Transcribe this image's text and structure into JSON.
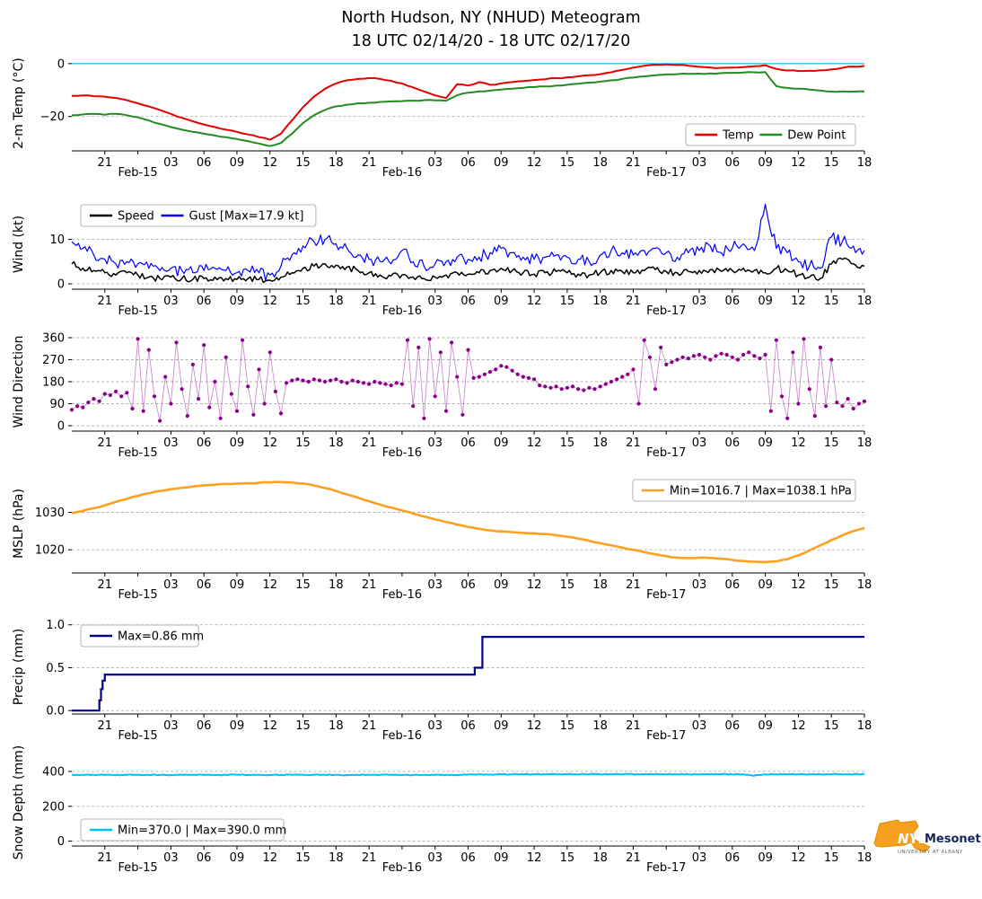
{
  "title": {
    "line1": "North Hudson, NY (NHUD) Meteogram",
    "line2": "18 UTC 02/14/20 - 18 UTC 02/17/20"
  },
  "logo": {
    "nys": "NYS",
    "mesonet": "Mesonet",
    "subtitle": "UNIVERSITY AT ALBANY"
  },
  "time_axis": {
    "start": "18 UTC 02/14/20",
    "end": "18 UTC 02/17/20",
    "hours": 72,
    "ticks": [
      {
        "t": 3,
        "label": "21"
      },
      {
        "t": 6,
        "label": "Feb-15",
        "date": true
      },
      {
        "t": 9,
        "label": "03"
      },
      {
        "t": 12,
        "label": "06"
      },
      {
        "t": 15,
        "label": "09"
      },
      {
        "t": 18,
        "label": "12"
      },
      {
        "t": 21,
        "label": "15"
      },
      {
        "t": 24,
        "label": "18"
      },
      {
        "t": 27,
        "label": "21"
      },
      {
        "t": 30,
        "label": "Feb-16",
        "date": true
      },
      {
        "t": 33,
        "label": "03"
      },
      {
        "t": 36,
        "label": "06"
      },
      {
        "t": 39,
        "label": "09"
      },
      {
        "t": 42,
        "label": "12"
      },
      {
        "t": 45,
        "label": "15"
      },
      {
        "t": 48,
        "label": "18"
      },
      {
        "t": 51,
        "label": "21"
      },
      {
        "t": 54,
        "label": "Feb-17",
        "date": true
      },
      {
        "t": 57,
        "label": "03"
      },
      {
        "t": 60,
        "label": "06"
      },
      {
        "t": 63,
        "label": "09"
      },
      {
        "t": 66,
        "label": "12"
      },
      {
        "t": 69,
        "label": "15"
      },
      {
        "t": 72,
        "label": "18"
      }
    ]
  },
  "chart_data": [
    {
      "name": "temp",
      "type": "line",
      "ylabel": "2-m Temp (°C)",
      "ylim": [
        -33,
        3
      ],
      "yticks": [
        {
          "v": 0,
          "label": "0"
        },
        {
          "v": -20,
          "label": "−20"
        }
      ],
      "hline": {
        "v": 0,
        "color": "#4fc8ff"
      },
      "legend": {
        "pos": "bottom-right",
        "entries": [
          {
            "label": "Temp",
            "color": "#e50000"
          },
          {
            "label": "Dew Point",
            "color": "#228b22"
          }
        ]
      },
      "series": [
        {
          "name": "Temp",
          "color": "#e50000",
          "values": [
            -12.2,
            -12.0,
            -12.3,
            -12.5,
            -13.0,
            -13.8,
            -15.0,
            -16.2,
            -17.5,
            -19.0,
            -20.5,
            -21.8,
            -23.0,
            -24.0,
            -25.0,
            -25.8,
            -26.8,
            -27.8,
            -28.8,
            -26.5,
            -21.5,
            -16.5,
            -12.5,
            -9.5,
            -7.5,
            -6.3,
            -5.8,
            -5.5,
            -5.8,
            -6.5,
            -7.5,
            -9.0,
            -10.5,
            -12.0,
            -13.0,
            -7.8,
            -8.3,
            -7.0,
            -8.0,
            -7.5,
            -7.0,
            -6.6,
            -6.2,
            -5.9,
            -5.5,
            -5.2,
            -4.8,
            -4.4,
            -4.0,
            -3.3,
            -2.4,
            -1.5,
            -0.8,
            -0.4,
            -0.3,
            -0.5,
            -0.8,
            -1.2,
            -1.5,
            -1.6,
            -1.5,
            -1.3,
            -1.0,
            -0.6,
            -2.0,
            -2.6,
            -2.8,
            -2.7,
            -2.5,
            -2.2,
            -1.6,
            -1.1,
            -0.9
          ]
        },
        {
          "name": "Dew Point",
          "color": "#228b22",
          "values": [
            -19.5,
            -19.2,
            -19.0,
            -19.3,
            -19.0,
            -19.5,
            -20.3,
            -21.5,
            -22.8,
            -24.0,
            -25.0,
            -25.8,
            -26.5,
            -27.2,
            -27.8,
            -28.5,
            -29.3,
            -30.2,
            -31.2,
            -30.0,
            -26.5,
            -22.5,
            -19.5,
            -17.5,
            -16.2,
            -15.5,
            -15.0,
            -14.8,
            -14.5,
            -14.3,
            -14.2,
            -14.0,
            -13.8,
            -13.9,
            -14.0,
            -12.0,
            -11.0,
            -10.5,
            -10.2,
            -9.8,
            -9.5,
            -9.2,
            -8.9,
            -8.6,
            -8.3,
            -8.0,
            -7.6,
            -7.2,
            -6.8,
            -6.3,
            -5.8,
            -5.3,
            -4.8,
            -4.4,
            -4.1,
            -4.0,
            -3.9,
            -3.8,
            -3.7,
            -3.6,
            -3.5,
            -3.4,
            -3.3,
            -3.2,
            -8.5,
            -9.2,
            -9.5,
            -9.8,
            -10.2,
            -10.6,
            -10.5,
            -10.6,
            -10.5
          ]
        }
      ]
    },
    {
      "name": "wind",
      "type": "line",
      "ylabel": "Wind (kt)",
      "ylim": [
        -1.2,
        19
      ],
      "yticks": [
        {
          "v": 0,
          "label": "0"
        },
        {
          "v": 10,
          "label": "10"
        }
      ],
      "legend": {
        "pos": "top-left",
        "entries": [
          {
            "label": "Speed",
            "color": "#000000"
          },
          {
            "label": "Gust [Max=17.9 kt]",
            "color": "#0000ff"
          }
        ]
      },
      "series": [
        {
          "name": "Speed",
          "color": "#000000",
          "values": [
            4.5,
            3.5,
            3.0,
            2.5,
            2.0,
            2.5,
            2.0,
            1.5,
            1.2,
            1.5,
            1.2,
            1.0,
            1.2,
            1.5,
            1.2,
            1.0,
            1.2,
            1.0,
            0.8,
            1.5,
            2.5,
            3.5,
            4.0,
            4.5,
            4.2,
            3.8,
            3.0,
            2.5,
            2.0,
            1.8,
            2.0,
            1.5,
            1.2,
            1.5,
            2.0,
            2.5,
            2.2,
            2.5,
            3.0,
            3.5,
            3.0,
            2.5,
            2.2,
            2.5,
            2.8,
            2.5,
            2.2,
            2.0,
            2.5,
            3.0,
            2.8,
            2.5,
            3.0,
            3.2,
            2.8,
            2.5,
            2.8,
            3.0,
            3.2,
            2.8,
            3.0,
            3.5,
            3.0,
            2.5,
            3.5,
            3.0,
            2.0,
            1.5,
            1.2,
            4.5,
            5.5,
            4.5,
            4.0
          ]
        },
        {
          "name": "Gust",
          "color": "#0000ff",
          "max_label": "17.9 kt",
          "values": [
            9.5,
            8.0,
            6.5,
            5.5,
            4.5,
            5.0,
            4.5,
            3.5,
            3.0,
            3.5,
            3.0,
            2.5,
            3.0,
            3.5,
            3.0,
            2.5,
            3.0,
            2.5,
            2.0,
            4.0,
            6.5,
            8.5,
            9.5,
            10.0,
            9.0,
            8.0,
            6.5,
            5.5,
            5.0,
            4.5,
            7.5,
            5.0,
            4.0,
            4.5,
            5.0,
            6.0,
            5.5,
            6.0,
            7.0,
            8.0,
            7.0,
            6.0,
            5.5,
            6.0,
            6.5,
            6.0,
            5.5,
            5.0,
            6.5,
            7.5,
            7.0,
            6.5,
            7.5,
            8.0,
            7.0,
            6.0,
            7.0,
            7.5,
            8.5,
            7.0,
            8.0,
            9.0,
            7.5,
            17.9,
            8.0,
            7.0,
            5.0,
            4.0,
            3.5,
            10.5,
            9.5,
            8.5,
            7.5
          ]
        }
      ]
    },
    {
      "name": "wind-direction",
      "type": "scatter",
      "ylabel": "Wind Direction",
      "ylim": [
        -22,
        382
      ],
      "yticks": [
        {
          "v": 0,
          "label": "0"
        },
        {
          "v": 90,
          "label": "90"
        },
        {
          "v": 180,
          "label": "180"
        },
        {
          "v": 270,
          "label": "270"
        },
        {
          "v": 360,
          "label": "360"
        }
      ],
      "series": [
        {
          "name": "Direction",
          "color": "#8b008b",
          "x": [
            0,
            0.5,
            1,
            1.5,
            2,
            2.5,
            3,
            3.5,
            4,
            4.5,
            5,
            5.5,
            6,
            6.5,
            7,
            7.5,
            8,
            8.5,
            9,
            9.5,
            10,
            10.5,
            11,
            11.5,
            12,
            12.5,
            13,
            13.5,
            14,
            14.5,
            15,
            15.5,
            16,
            16.5,
            17,
            17.5,
            18,
            18.5,
            19,
            19.5,
            20,
            20.5,
            21,
            21.5,
            22,
            22.5,
            23,
            23.5,
            24,
            24.5,
            25,
            25.5,
            26,
            26.5,
            27,
            27.5,
            28,
            28.5,
            29,
            29.5,
            30,
            30.5,
            31,
            31.5,
            32,
            32.5,
            33,
            33.5,
            34,
            34.5,
            35,
            35.5,
            36,
            36.5,
            37,
            37.5,
            38,
            38.5,
            39,
            39.5,
            40,
            40.5,
            41,
            41.5,
            42,
            42.5,
            43,
            43.5,
            44,
            44.5,
            45,
            45.5,
            46,
            46.5,
            47,
            47.5,
            48,
            48.5,
            49,
            49.5,
            50,
            50.5,
            51,
            51.5,
            52,
            52.5,
            53,
            53.5,
            54,
            54.5,
            55,
            55.5,
            56,
            56.5,
            57,
            57.5,
            58,
            58.5,
            59,
            59.5,
            60,
            60.5,
            61,
            61.5,
            62,
            62.5,
            63,
            63.5,
            64,
            64.5,
            65,
            65.5,
            66,
            66.5,
            67,
            67.5,
            68,
            68.5,
            69,
            69.5,
            70,
            70.5,
            71,
            71.5,
            72
          ],
          "values": [
            65,
            80,
            75,
            95,
            110,
            100,
            130,
            125,
            140,
            120,
            135,
            70,
            355,
            60,
            310,
            120,
            20,
            200,
            90,
            340,
            150,
            40,
            250,
            110,
            330,
            75,
            180,
            30,
            280,
            130,
            60,
            350,
            160,
            45,
            230,
            90,
            300,
            140,
            50,
            175,
            185,
            190,
            185,
            180,
            190,
            185,
            180,
            185,
            190,
            180,
            175,
            185,
            180,
            175,
            170,
            180,
            175,
            170,
            165,
            175,
            170,
            350,
            80,
            320,
            30,
            355,
            120,
            300,
            60,
            340,
            200,
            45,
            310,
            195,
            200,
            210,
            220,
            230,
            245,
            240,
            225,
            210,
            200,
            195,
            190,
            165,
            160,
            155,
            160,
            150,
            155,
            160,
            150,
            145,
            155,
            150,
            160,
            170,
            180,
            190,
            200,
            210,
            230,
            90,
            350,
            280,
            150,
            320,
            250,
            260,
            270,
            280,
            275,
            285,
            290,
            280,
            270,
            285,
            295,
            290,
            280,
            270,
            290,
            300,
            285,
            275,
            290,
            60,
            350,
            120,
            30,
            300,
            90,
            355,
            150,
            40,
            320,
            80,
            270,
            95,
            80,
            110,
            70,
            90,
            100
          ]
        }
      ]
    },
    {
      "name": "mslp",
      "type": "line",
      "ylabel": "MSLP (hPa)",
      "ylim": [
        1013.8,
        1040.2
      ],
      "yticks": [
        {
          "v": 1020,
          "label": "1020"
        },
        {
          "v": 1030,
          "label": "1030"
        }
      ],
      "legend": {
        "pos": "top-right",
        "entries": [
          {
            "label": "Min=1016.7 | Max=1038.1 hPa",
            "color": "#ffa022"
          }
        ]
      },
      "series": [
        {
          "name": "MSLP",
          "color": "#ffa022",
          "min_label": "1016.7 hPa",
          "max_label": "1038.1 hPa",
          "values": [
            1029.8,
            1030.4,
            1031.1,
            1031.9,
            1032.8,
            1033.6,
            1034.4,
            1035.1,
            1035.7,
            1036.2,
            1036.6,
            1036.9,
            1037.2,
            1037.4,
            1037.6,
            1037.7,
            1037.8,
            1037.9,
            1038.0,
            1038.1,
            1038.0,
            1037.7,
            1037.2,
            1036.5,
            1035.7,
            1034.8,
            1033.9,
            1033.0,
            1032.1,
            1031.3,
            1030.5,
            1029.7,
            1028.9,
            1028.1,
            1027.4,
            1026.7,
            1026.1,
            1025.6,
            1025.2,
            1024.9,
            1024.7,
            1024.5,
            1024.4,
            1024.2,
            1023.9,
            1023.5,
            1023.0,
            1022.4,
            1021.8,
            1021.2,
            1020.6,
            1020.0,
            1019.4,
            1018.8,
            1018.3,
            1017.9,
            1017.8,
            1017.9,
            1017.8,
            1017.6,
            1017.3,
            1017.0,
            1016.8,
            1016.7,
            1016.9,
            1017.5,
            1018.5,
            1019.8,
            1021.2,
            1022.6,
            1023.9,
            1025.0,
            1025.8
          ]
        }
      ]
    },
    {
      "name": "precip",
      "type": "step",
      "ylabel": "Precip (mm)",
      "ylim": [
        -0.04,
        1.06
      ],
      "yticks": [
        {
          "v": 0,
          "label": "0.0"
        },
        {
          "v": 0.5,
          "label": "0.5"
        },
        {
          "v": 1.0,
          "label": "1.0"
        }
      ],
      "legend": {
        "pos": "top-left",
        "entries": [
          {
            "label": "Max=0.86 mm",
            "color": "#00008b"
          }
        ]
      },
      "series": [
        {
          "name": "Precip",
          "color": "#00008b",
          "max_label": "0.86 mm",
          "x": [
            0,
            2.3,
            2.5,
            2.65,
            2.8,
            3.0,
            36.4,
            36.6,
            37.1,
            37.3,
            72
          ],
          "values": [
            0,
            0,
            0.12,
            0.25,
            0.35,
            0.42,
            0.42,
            0.5,
            0.5,
            0.86,
            0.86
          ]
        }
      ]
    },
    {
      "name": "snow-depth",
      "type": "line",
      "ylabel": "Snow Depth (mm)",
      "ylim": [
        -28,
        472
      ],
      "yticks": [
        {
          "v": 0,
          "label": "0"
        },
        {
          "v": 200,
          "label": "200"
        },
        {
          "v": 400,
          "label": "400"
        }
      ],
      "legend": {
        "pos": "bottom-left",
        "entries": [
          {
            "label": "Min=370.0 | Max=390.0 mm",
            "color": "#00bfff"
          }
        ]
      },
      "series": [
        {
          "name": "Snow Depth",
          "color": "#00bfff",
          "min_label": "370.0 mm",
          "max_label": "390.0 mm",
          "values": [
            380,
            380,
            381,
            380,
            379,
            380,
            381,
            380,
            380,
            379,
            380,
            381,
            380,
            379,
            380,
            381,
            380,
            380,
            379,
            380,
            381,
            380,
            380,
            381,
            380,
            379,
            380,
            380,
            381,
            380,
            379,
            380,
            381,
            380,
            380,
            379,
            383,
            384,
            383,
            384,
            384,
            383,
            384,
            383,
            384,
            384,
            383,
            384,
            384,
            383,
            384,
            384,
            383,
            384,
            383,
            384,
            384,
            383,
            384,
            384,
            383,
            384,
            376,
            383,
            384,
            383,
            384,
            384,
            383,
            384,
            383,
            384,
            384
          ]
        }
      ]
    }
  ]
}
